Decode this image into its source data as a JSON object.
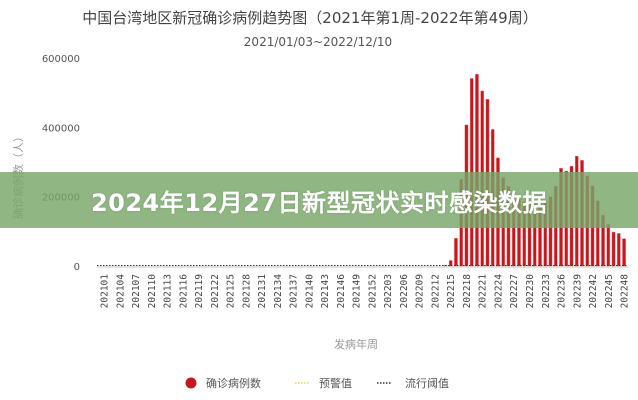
{
  "banner": {
    "text": "2024年12月27日新型冠状实时感染数据"
  },
  "colors": {
    "bar": "#c8161d",
    "warning_line": "#e6d84a",
    "epidemic_line": "#333333",
    "banner": "#76a668"
  },
  "chart_data": {
    "type": "bar",
    "title": "中国台湾地区新冠确诊病例趋势图（2021年第1周-2022年第49周）",
    "subtitle": "2021/01/03~2022/12/10",
    "xlabel": "发病年周",
    "ylabel": "确诊病例数（人）",
    "ylim": [
      0,
      600000
    ],
    "yticks": [
      "0",
      "200000",
      "400000",
      "600000"
    ],
    "grid": false,
    "legend_position": "bottom",
    "legend": [
      "确诊病例数",
      "预警值",
      "流行阈值"
    ],
    "xtick_labels": [
      "202101",
      "202104",
      "202107",
      "202110",
      "202113",
      "202116",
      "202119",
      "202122",
      "202125",
      "202128",
      "202131",
      "202134",
      "202137",
      "202140",
      "202143",
      "202146",
      "202149",
      "202152",
      "202203",
      "202206",
      "202209",
      "202212",
      "202215",
      "202218",
      "202221",
      "202224",
      "202227",
      "202230",
      "202233",
      "202236",
      "202239",
      "202242",
      "202245",
      "202248"
    ],
    "weeks_2021": 52,
    "weeks_2022": 48,
    "series": [
      {
        "name": "确诊病例数",
        "type": "bar",
        "values": [
          0,
          0,
          0,
          0,
          0,
          0,
          0,
          0,
          0,
          0,
          0,
          0,
          0,
          0,
          0,
          0,
          0,
          0,
          0,
          0,
          0,
          0,
          0,
          0,
          0,
          0,
          0,
          0,
          0,
          0,
          0,
          0,
          0,
          0,
          0,
          0,
          0,
          0,
          0,
          0,
          0,
          0,
          0,
          0,
          0,
          0,
          0,
          0,
          0,
          0,
          0,
          0,
          0,
          0,
          0,
          0,
          0,
          0,
          0,
          0,
          0,
          0,
          0,
          0,
          0,
          2000,
          16000,
          80000,
          250000,
          407000,
          541000,
          553000,
          505000,
          481000,
          394000,
          312000,
          255000,
          230000,
          210000,
          195000,
          185000,
          180000,
          178000,
          180000,
          185000,
          200000,
          230000,
          282000,
          274000,
          288000,
          317000,
          305000,
          260000,
          231000,
          188000,
          147000,
          120000,
          98000,
          94000,
          79000
        ]
      },
      {
        "name": "预警值",
        "type": "line",
        "value": 0
      },
      {
        "name": "流行阈值",
        "type": "line",
        "value": 0
      }
    ]
  }
}
